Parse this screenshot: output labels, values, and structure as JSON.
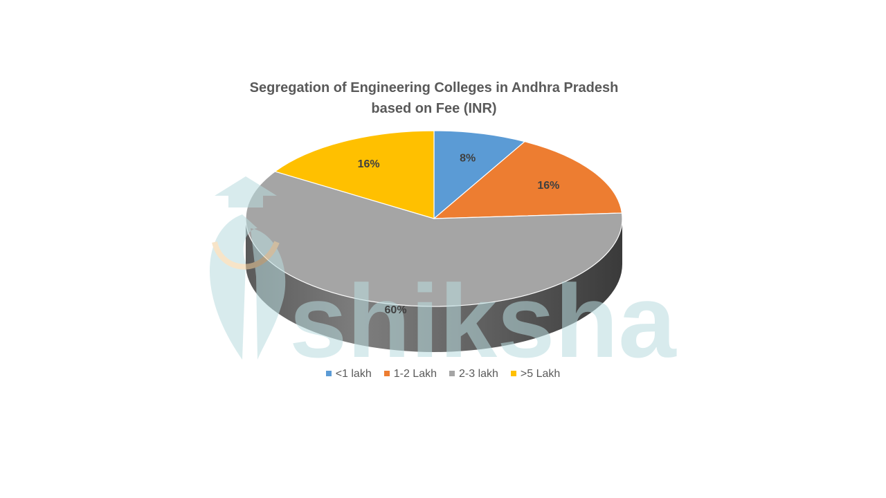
{
  "chart_data": {
    "type": "pie",
    "title_line1": "Segregation of Engineering Colleges in Andhra Pradesh",
    "title_line2": "based on Fee (INR)",
    "categories": [
      "<1 lakh",
      "1-2 Lakh",
      "2-3 lakh",
      ">5 Lakh"
    ],
    "values": [
      8,
      16,
      60,
      16
    ],
    "labels": [
      "8%",
      "16%",
      "60%",
      "16%"
    ],
    "colors": [
      "#5b9bd5",
      "#ed7d31",
      "#a5a5a5",
      "#ffc000"
    ],
    "legend_position": "bottom",
    "style": "3d"
  },
  "watermark": {
    "text": "shiksha",
    "color": "#d3e8ea"
  }
}
